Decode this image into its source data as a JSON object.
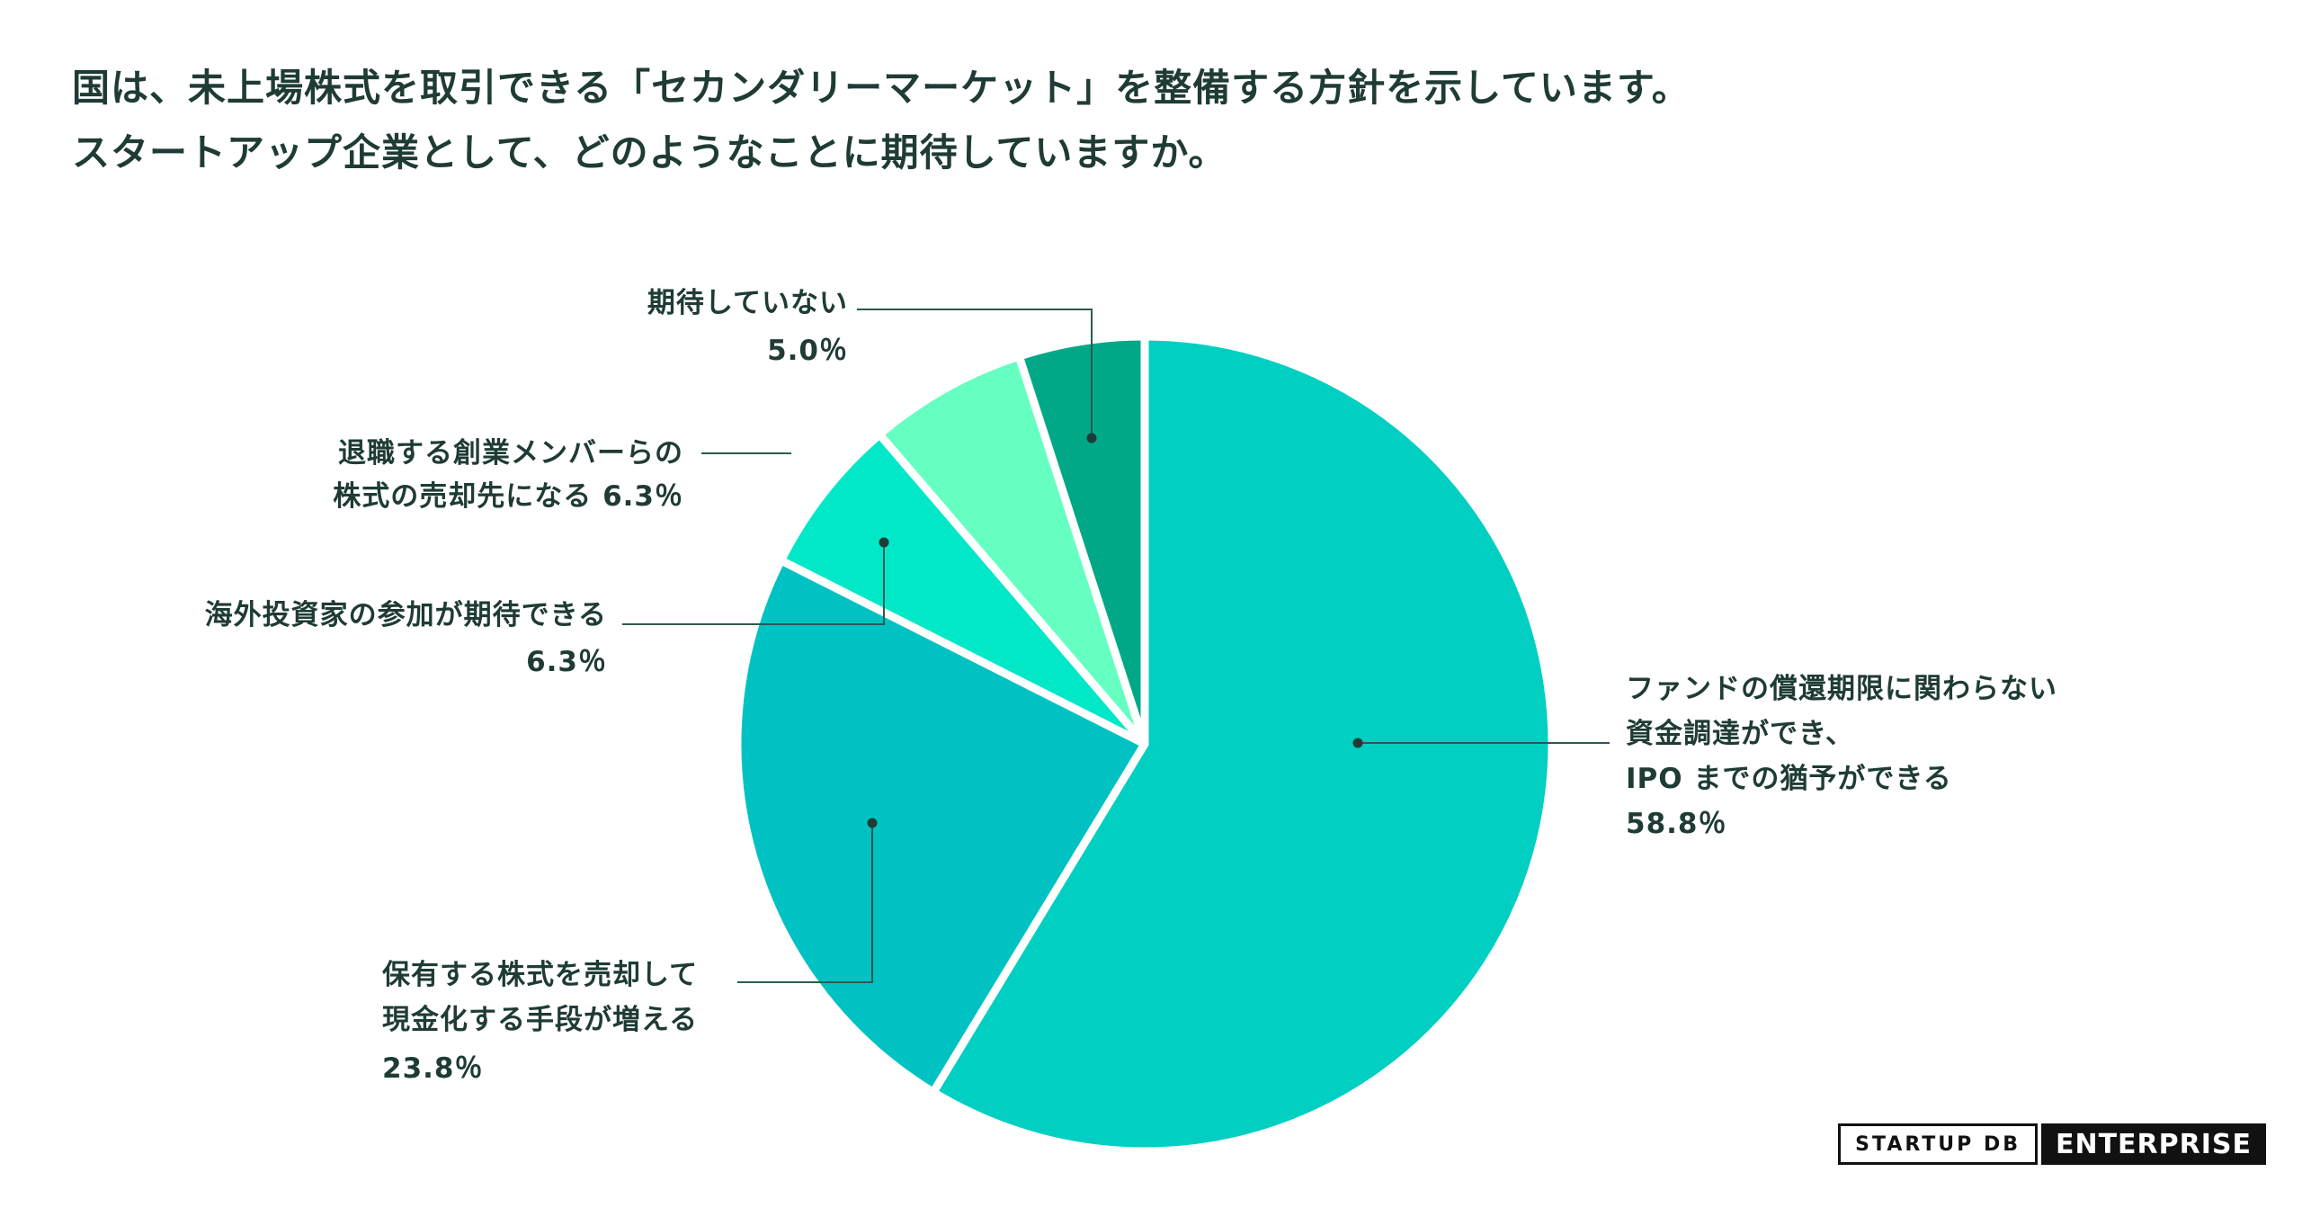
{
  "title": {
    "line1": "国は、未上場株式を取引できる「セカンダリーマーケット」を整備する方針を示しています。",
    "line2": "スタートアップ企業として、どのようなことに期待していますか。"
  },
  "chart_data": {
    "type": "pie",
    "title": "国は、未上場株式を取引できる「セカンダリーマーケット」を整備する方針を示しています。スタートアップ企業として、どのようなことに期待していますか。",
    "slices": [
      {
        "label_lines": [
          "ファンドの償還期限に関わらない",
          "資金調達ができ、",
          "IPO までの猶予ができる"
        ],
        "value": 58.8,
        "value_label": "58.8％",
        "color": "#00cfc1"
      },
      {
        "label_lines": [
          "保有する株式を売却して",
          "現金化する手段が増える"
        ],
        "value": 23.8,
        "value_label": "23.8％",
        "color": "#00c2c2"
      },
      {
        "label_lines": [
          "海外投資家の参加が期待できる"
        ],
        "value": 6.3,
        "value_label": "6.3％",
        "color": "#00e8c8"
      },
      {
        "label_lines": [
          "退職する創業メンバーらの",
          "株式の売却先になる"
        ],
        "value": 6.3,
        "value_label": "6.3％",
        "color": "#66ffc2"
      },
      {
        "label_lines": [
          "期待していない"
        ],
        "value": 5.0,
        "value_label": "5.0％",
        "color": "#00a887"
      }
    ],
    "start": "12 o'clock",
    "direction": "clockwise"
  },
  "logo": {
    "left": "STARTUP DB",
    "right": "ENTERPRISE"
  }
}
